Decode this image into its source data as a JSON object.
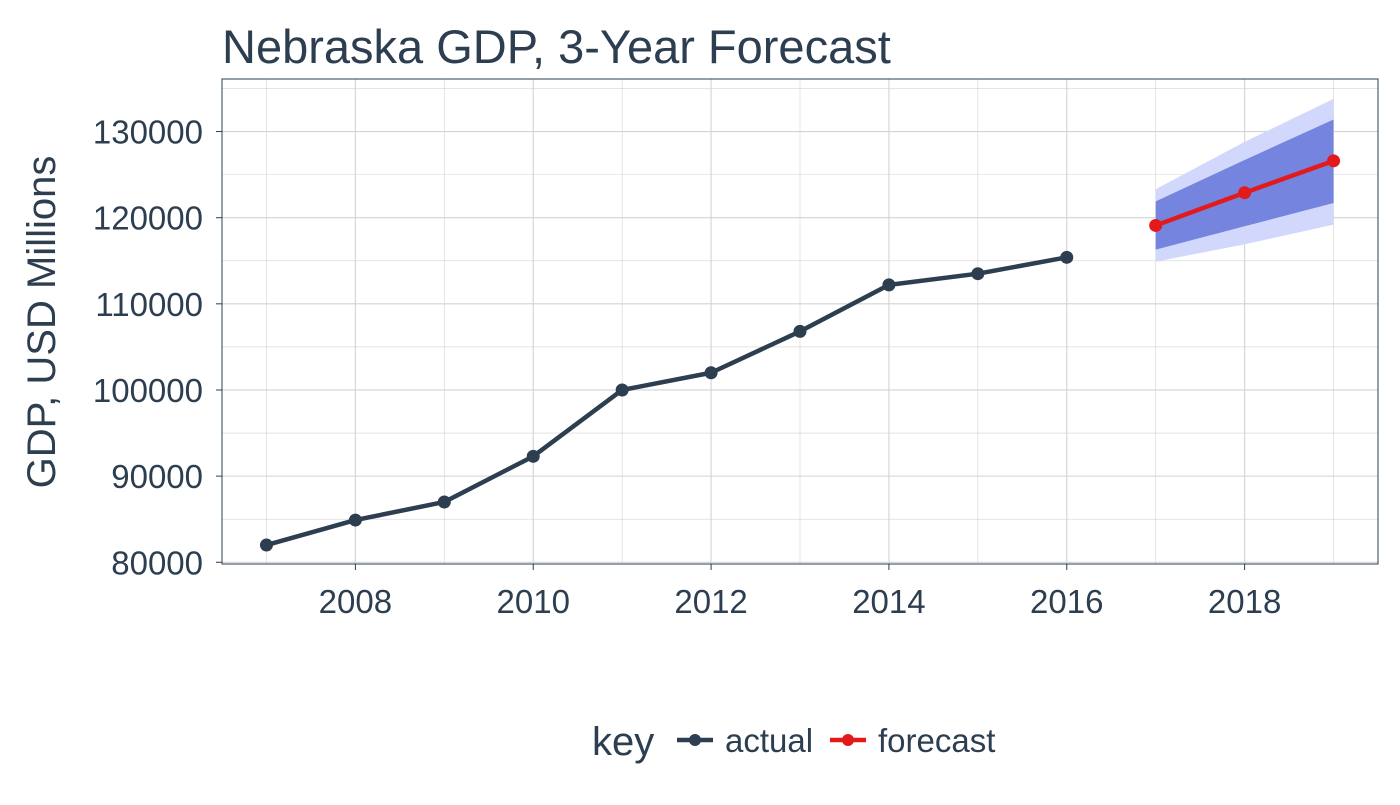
{
  "chart_data": {
    "type": "line",
    "title": "Nebraska GDP, 3-Year Forecast",
    "xlabel": "",
    "ylabel": "GDP, USD Millions",
    "xlim": [
      2006.5,
      2019.5
    ],
    "ylim": [
      79800,
      136100
    ],
    "x_ticks": [
      2008,
      2010,
      2012,
      2014,
      2016,
      2018
    ],
    "y_ticks": [
      80000,
      90000,
      100000,
      110000,
      120000,
      130000
    ],
    "x_tick_labels": [
      "2008",
      "2010",
      "2012",
      "2014",
      "2016",
      "2018"
    ],
    "y_tick_labels": [
      "80000",
      "90000",
      "100000",
      "110000",
      "120000",
      "130000"
    ],
    "grid": true,
    "legend": {
      "title": "key",
      "position": "bottom",
      "entries": [
        "actual",
        "forecast"
      ]
    },
    "colors": {
      "actual": "#2c3e50",
      "forecast": "#e31a1c",
      "band_outer": "#d1d8fb",
      "band_inner": "#7585df",
      "grid": "#d3d3d3",
      "panel_border": "#2c3e50",
      "text": "#2c3e50"
    },
    "series": [
      {
        "name": "actual",
        "x": [
          2007,
          2008,
          2009,
          2010,
          2011,
          2012,
          2013,
          2014,
          2015,
          2016
        ],
        "y": [
          82000,
          84900,
          87000,
          92300,
          100000,
          102000,
          106800,
          112200,
          113500,
          115400
        ]
      },
      {
        "name": "forecast",
        "x": [
          2017,
          2018,
          2019
        ],
        "y": [
          119100,
          122900,
          126600
        ]
      }
    ],
    "forecast_interval_outer": {
      "x": [
        2017,
        2018,
        2019
      ],
      "lower": [
        114900,
        116900,
        119200
      ],
      "upper": [
        123300,
        128800,
        133800
      ]
    },
    "forecast_interval_inner": {
      "x": [
        2017,
        2018,
        2019
      ],
      "lower": [
        116300,
        119000,
        121700
      ],
      "upper": [
        121900,
        126700,
        131400
      ]
    }
  }
}
